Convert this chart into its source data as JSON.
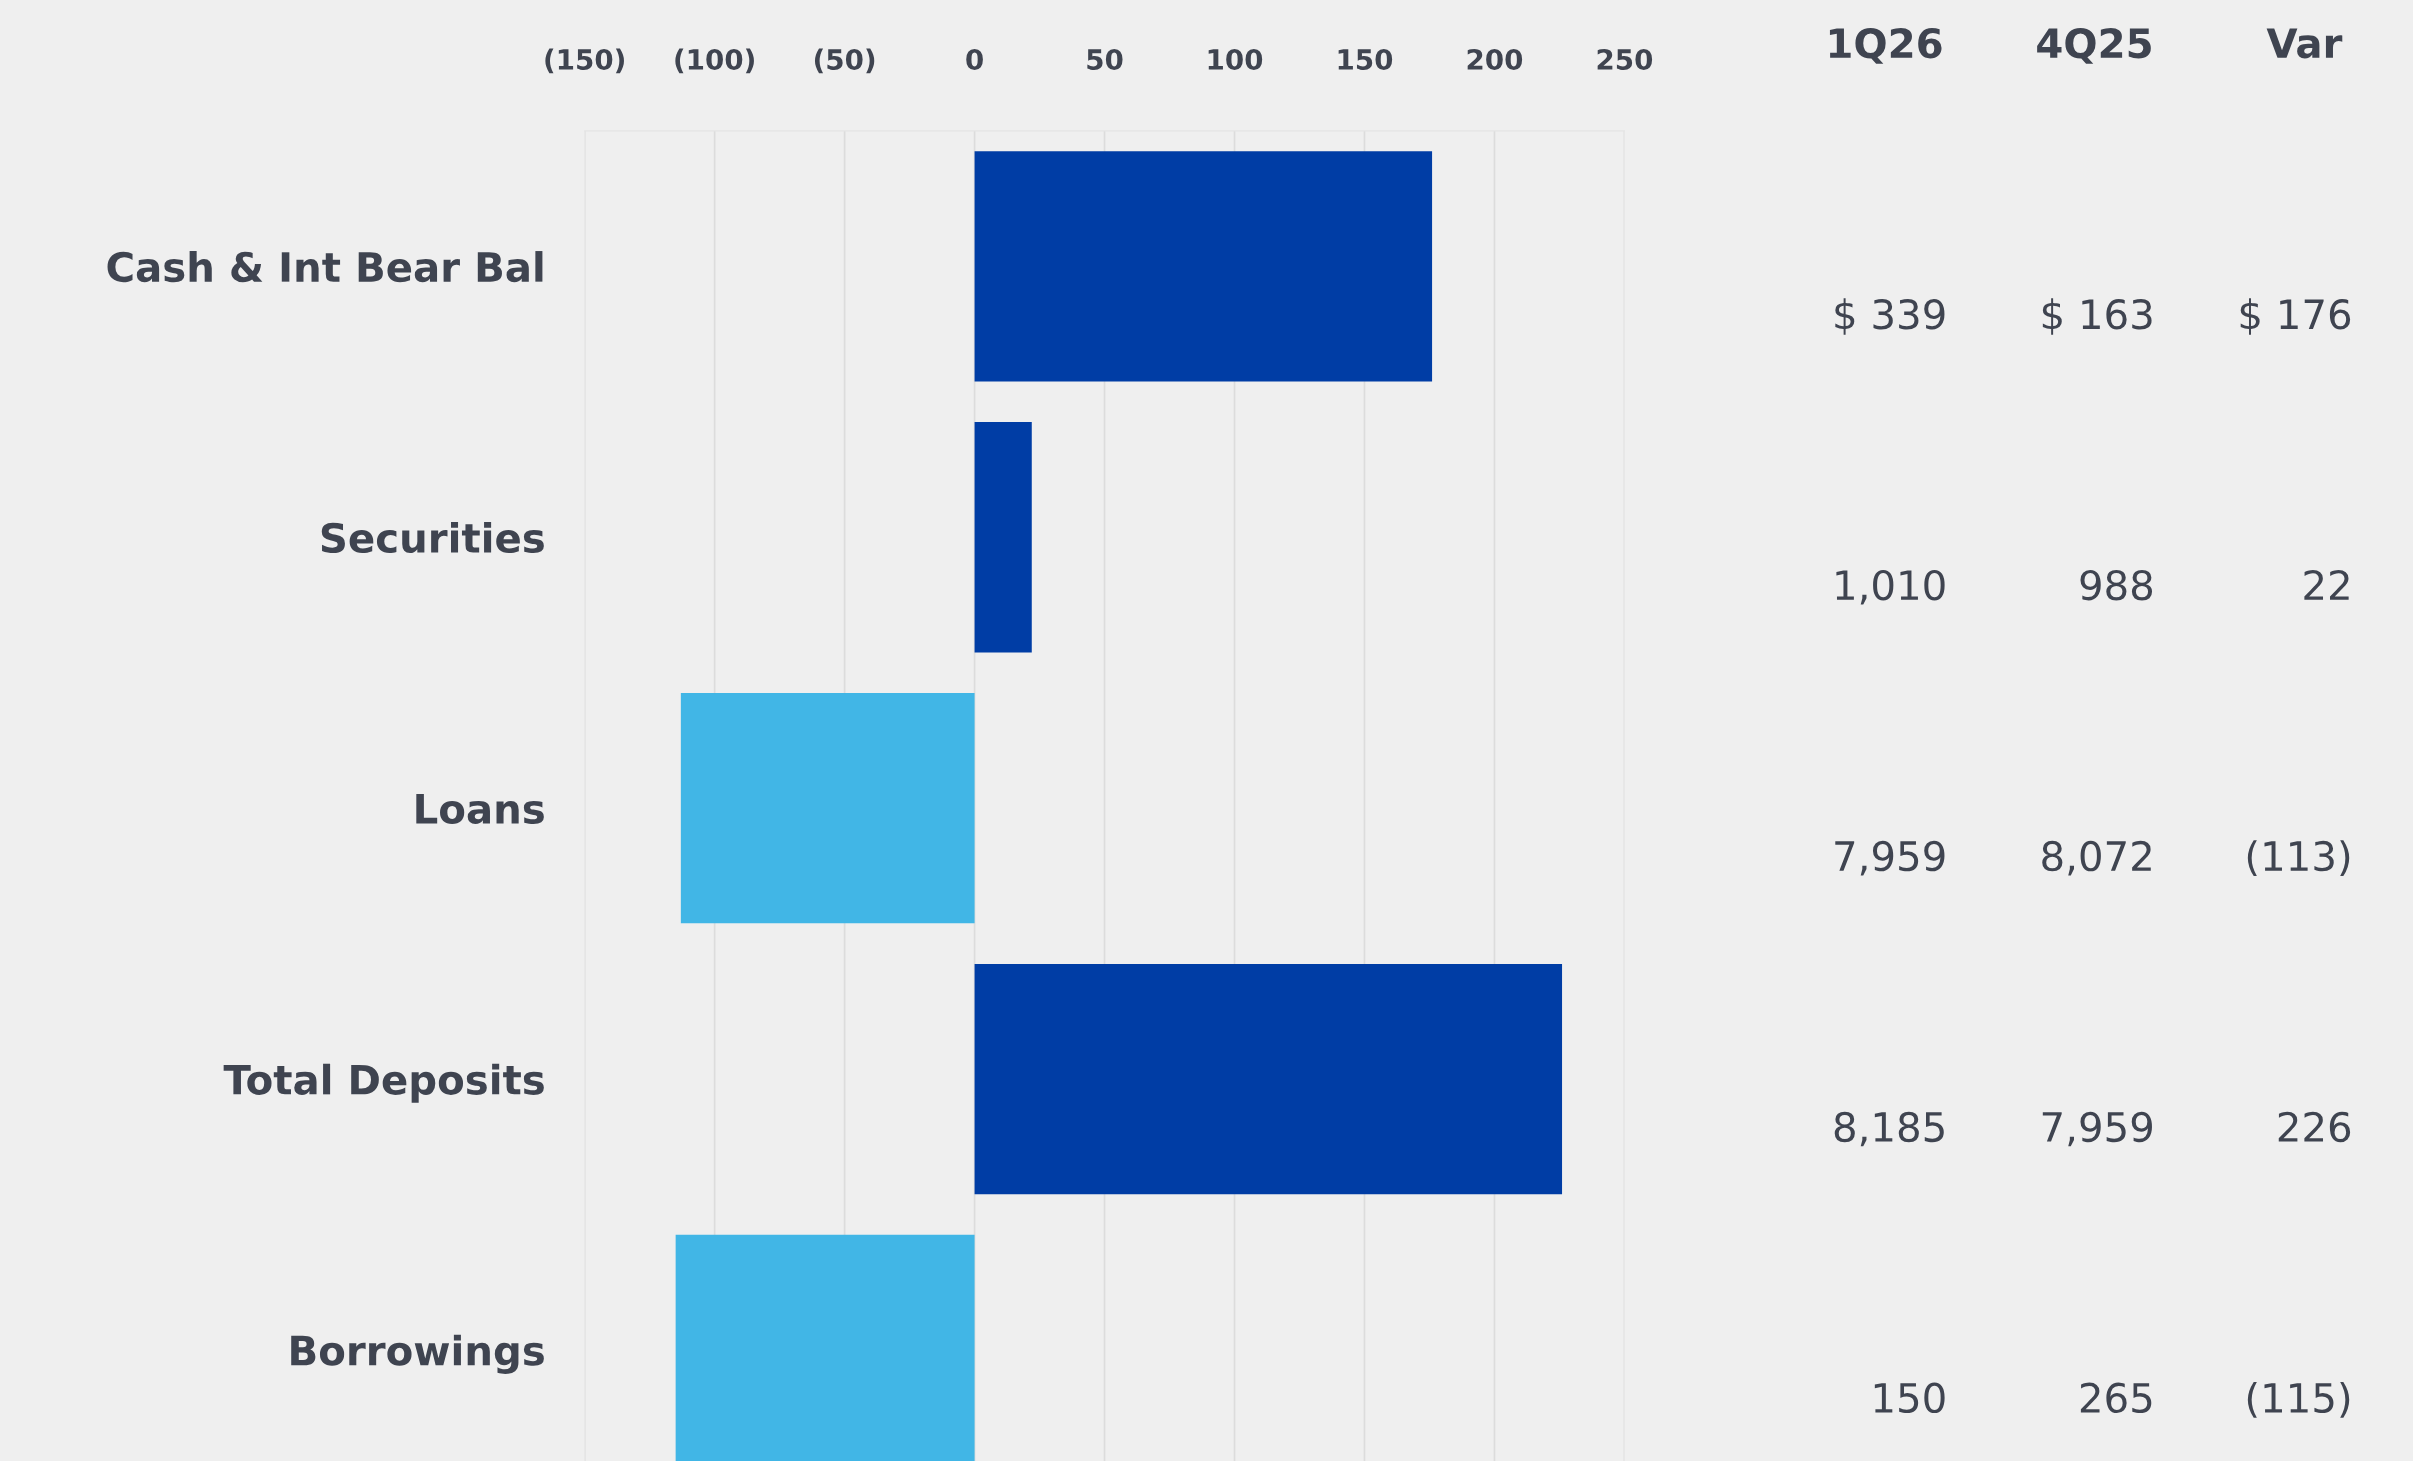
{
  "chart_data": {
    "type": "bar",
    "orientation": "horizontal",
    "categories": [
      "Cash & Int Bear Bal",
      "Securities",
      "Loans",
      "Total Deposits",
      "Borrowings"
    ],
    "values": [
      176,
      22,
      -113,
      226,
      -115
    ],
    "colors": [
      "#003da5",
      "#003da5",
      "#41b6e6",
      "#003da5",
      "#41b6e6"
    ],
    "value_labels": [
      "$ 176",
      "22",
      "(113)",
      "226",
      "(115)"
    ],
    "xlim": [
      -150,
      250
    ],
    "xticks": [
      {
        "value": -150,
        "label": "(150)"
      },
      {
        "value": -100,
        "label": "(100)"
      },
      {
        "value": -50,
        "label": "(50)"
      },
      0,
      50,
      100,
      150,
      200,
      250
    ],
    "grid": "x",
    "annotations": [
      "1Q26",
      "4Q25",
      "Var",
      "$ 339",
      "$ 163",
      "1,010",
      "988",
      "7,959",
      "8,072",
      "8,185",
      "7,959",
      "150",
      "265"
    ]
  }
}
